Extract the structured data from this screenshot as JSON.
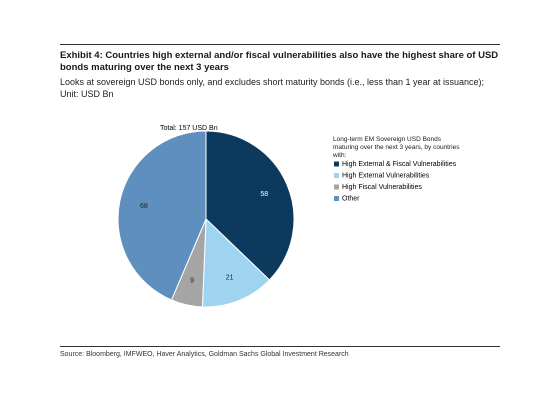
{
  "chart_data": {
    "type": "pie",
    "title": "Exhibit 4: Countries high external and/or fiscal vulnerabilities also have the highest share of USD bonds maturing over the next 3 years",
    "subtitle": "Looks at sovereign USD bonds only, and excludes short maturity bonds (i.e., less than 1 year at issuance); Unit: USD Bn",
    "annotation": "Total: 157 USD Bn",
    "legend_title": "Long-term EM Sovereign USD Bonds maturing over the next 3 years, by countries with:",
    "categories": [
      "High External & Fiscal Vulnerabilities",
      "High External Vulnerabilities",
      "High Fiscal Vulnerabilities",
      "Other"
    ],
    "values": [
      58,
      21,
      9,
      68
    ],
    "colors": [
      "#0c3a5f",
      "#9fd4f0",
      "#a5a5a5",
      "#5e8fbf"
    ],
    "source": "Source: Bloomberg, IMFWEO, Haver Analytics, Goldman Sachs Global Investment Research"
  }
}
